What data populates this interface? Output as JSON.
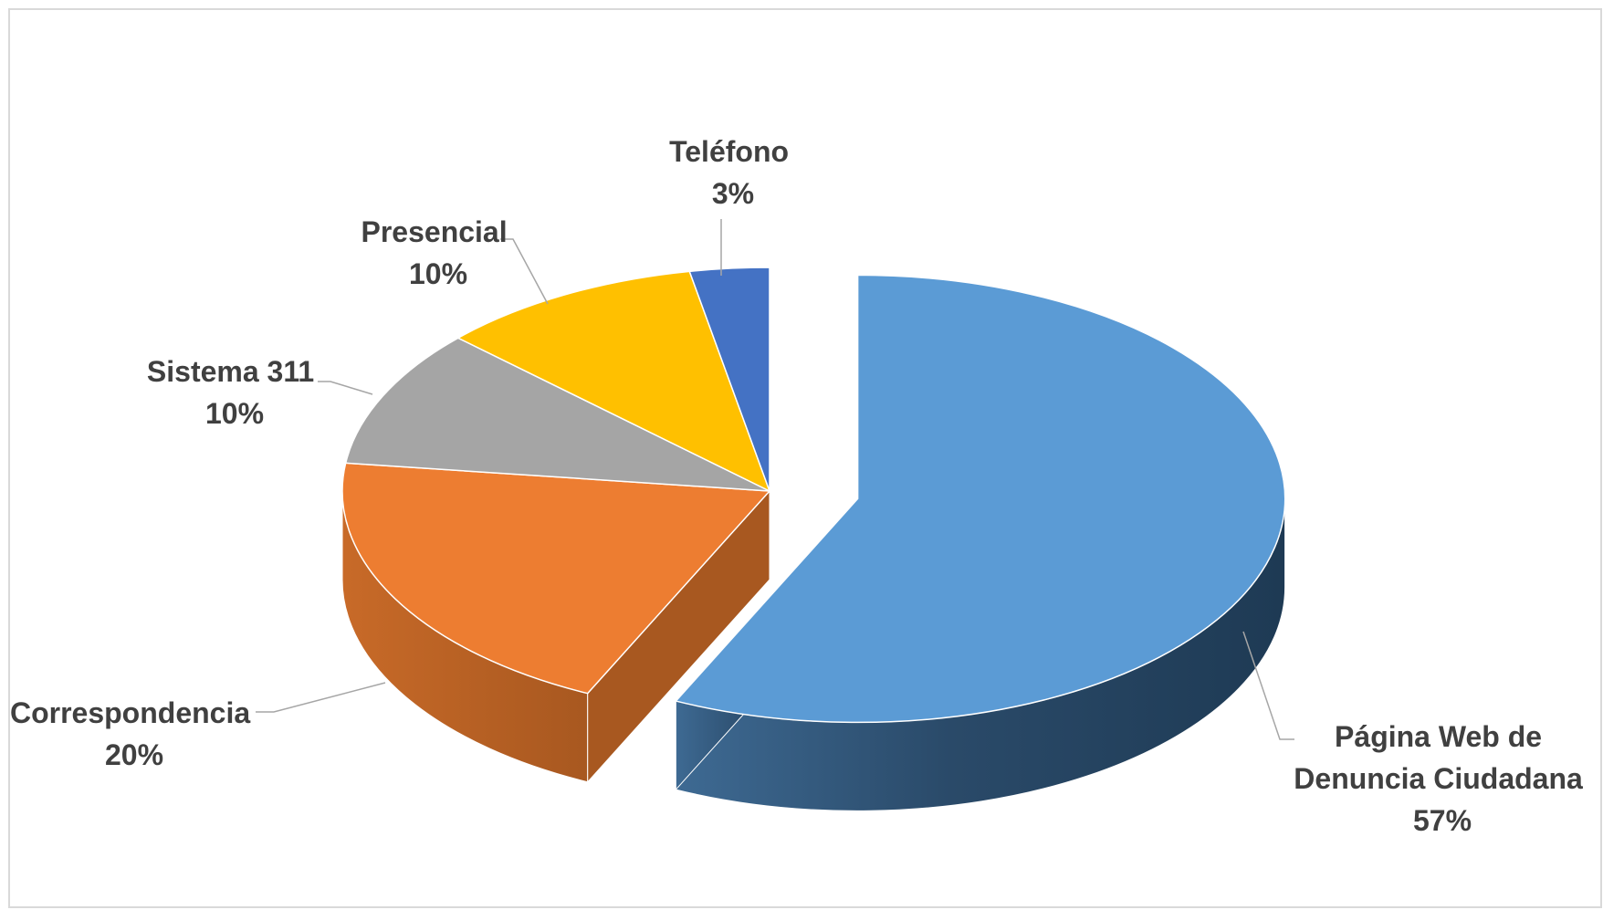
{
  "chart_data": {
    "type": "pie",
    "style": "3d-exploded",
    "title": "",
    "slices": [
      {
        "label": "Página Web de Denuncia Ciudadana",
        "percent_label": "57%",
        "value": 57,
        "color": "#5B9BD5",
        "exploded": true
      },
      {
        "label": "Correspondencia",
        "percent_label": "20%",
        "value": 20,
        "color": "#ED7D31"
      },
      {
        "label": "Sistema 311",
        "percent_label": "10%",
        "value": 10,
        "color": "#A5A5A5"
      },
      {
        "label": "Presencial",
        "percent_label": "10%",
        "value": 10,
        "color": "#FFC000"
      },
      {
        "label": "Teléfono",
        "percent_label": "3%",
        "value": 3,
        "color": "#4472C4"
      }
    ],
    "legend": "none",
    "data_labels": "category name and percentage"
  },
  "labels": {
    "web": {
      "line1": "Página Web de",
      "line2": "Denuncia Ciudadana",
      "pct": "57%"
    },
    "corr": {
      "name": "Correspondencia",
      "pct": "20%"
    },
    "s311": {
      "name": "Sistema 311",
      "pct": "10%"
    },
    "pres": {
      "name": "Presencial",
      "pct": "10%"
    },
    "tel": {
      "name": "Teléfono",
      "pct": "3%"
    }
  }
}
